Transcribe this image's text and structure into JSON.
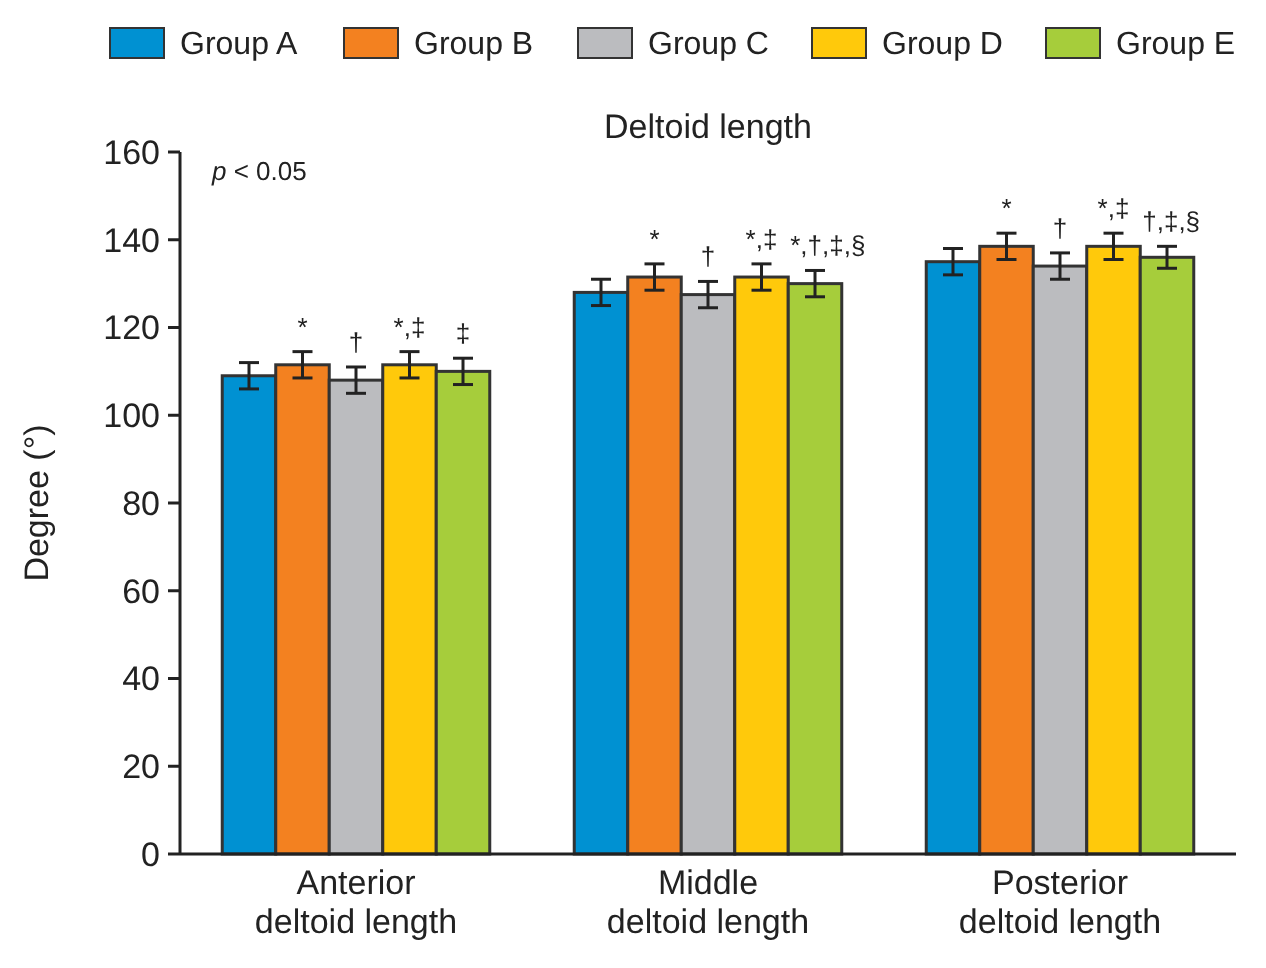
{
  "chart_data": {
    "type": "bar",
    "title": "Deltoid length",
    "ylabel": "Degree (°)",
    "categories": [
      "Anterior deltoid length",
      "Middle deltoid length",
      "Posterior deltoid length"
    ],
    "series": [
      {
        "name": "Group A",
        "color": "#0091d2",
        "values": [
          109,
          128,
          135
        ],
        "errors": [
          3,
          3,
          3
        ],
        "value_labels": [
          null,
          null,
          null
        ]
      },
      {
        "name": "Group B",
        "color": "#f38120",
        "values": [
          111.5,
          131.5,
          138.5
        ],
        "errors": [
          3,
          3,
          3
        ],
        "value_labels": [
          "*",
          "*",
          "*"
        ]
      },
      {
        "name": "Group C",
        "color": "#bbbcbf",
        "values": [
          108,
          127.5,
          134
        ],
        "errors": [
          3,
          3,
          3
        ],
        "value_labels": [
          "†",
          "†",
          "†"
        ]
      },
      {
        "name": "Group D",
        "color": "#ffc90b",
        "values": [
          111.5,
          131.5,
          138.5
        ],
        "errors": [
          3,
          3,
          3
        ],
        "value_labels": [
          "*,‡",
          "*,‡",
          "*,‡"
        ]
      },
      {
        "name": "Group E",
        "color": "#a6cd3b",
        "values": [
          110,
          130,
          136
        ],
        "errors": [
          3,
          3,
          2.5
        ],
        "value_labels": [
          "‡",
          "*,†,‡,§",
          "†,‡,§"
        ]
      }
    ],
    "ylim": [
      0,
      160
    ],
    "yticks": [
      0,
      20,
      40,
      60,
      80,
      100,
      120,
      140,
      160
    ],
    "grid": false,
    "legend": "top",
    "annotations": [
      "p < 0.05"
    ]
  }
}
